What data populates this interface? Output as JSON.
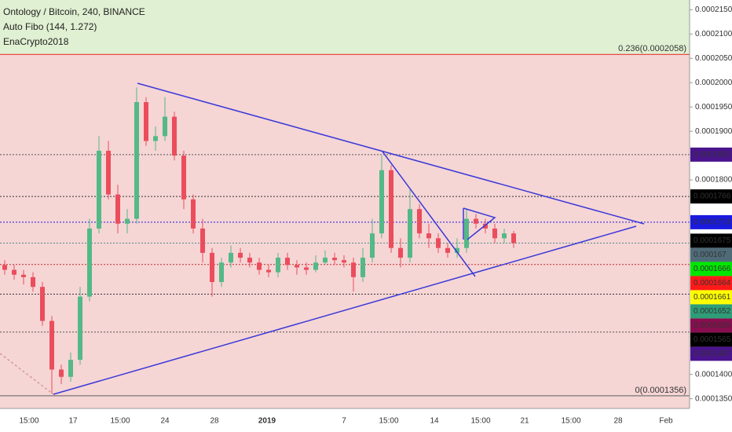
{
  "chart_data": {
    "type": "candlestick",
    "title": "Ontology / Bitcoin, 240, BINANCE",
    "indicator": "Auto Fibo (144, 1.272)",
    "author": "EnaCrypto2018",
    "x_labels": [
      "15:00",
      "17",
      "15:00",
      "24",
      "28",
      "2019",
      "7",
      "15:00",
      "14",
      "15:00",
      "21",
      "15:00",
      "28",
      "Feb"
    ],
    "open": [
      0.0001625,
      0.0001615,
      0.0001605,
      0.00016,
      0.000158,
      0.000151,
      0.000141,
      0.0001395,
      0.000143,
      0.000156,
      0.00017,
      0.000186,
      0.000177,
      0.000171,
      0.000172,
      0.000196,
      0.000188,
      0.000189,
      0.000193,
      0.000185,
      0.000176,
      0.00017,
      0.000165,
      0.000159,
      0.000163,
      0.000165,
      0.000164,
      0.000163,
      0.0001615,
      0.000161,
      0.000164,
      0.0001625,
      0.000162,
      0.0001615,
      0.000163,
      0.000164,
      0.0001635,
      0.000163,
      0.00016,
      0.000164,
      0.000169,
      0.000182,
      0.000166,
      0.000164,
      0.000174,
      0.000169,
      0.000168,
      0.000166,
      0.000165,
      0.000166,
      0.000172,
      0.000171,
      0.00017,
      0.000168,
      0.000169
    ],
    "high": [
      0.0001635,
      0.0001625,
      0.0001615,
      0.000161,
      0.000159,
      0.000152,
      0.000142,
      0.0001445,
      0.000158,
      0.000172,
      0.000189,
      0.000188,
      0.000179,
      0.000174,
      0.000199,
      0.000197,
      0.000191,
      0.000197,
      0.000194,
      0.000186,
      0.000177,
      0.000172,
      0.000166,
      0.000164,
      0.0001665,
      0.000166,
      0.000165,
      0.000164,
      0.0001625,
      0.000165,
      0.000165,
      0.0001635,
      0.000163,
      0.0001645,
      0.0001655,
      0.000165,
      0.0001645,
      0.000164,
      0.000166,
      0.000172,
      0.000185,
      0.000183,
      0.000168,
      0.000178,
      0.000175,
      0.000171,
      0.000169,
      0.000167,
      0.000168,
      0.000174,
      0.000173,
      0.000172,
      0.000171,
      0.00017,
      0.0001695
    ],
    "low": [
      0.0001605,
      0.0001595,
      0.0001585,
      0.000157,
      0.00015,
      0.000136,
      0.000138,
      0.0001385,
      0.000142,
      0.000155,
      0.000169,
      0.000176,
      0.000169,
      0.000169,
      0.000171,
      0.000187,
      0.000186,
      0.000188,
      0.000184,
      0.000174,
      0.000169,
      0.000163,
      0.000156,
      0.000158,
      0.000162,
      0.000163,
      0.000162,
      0.0001605,
      0.00016,
      0.00016,
      0.0001615,
      0.0001605,
      0.0001605,
      0.000161,
      0.0001625,
      0.0001625,
      0.000162,
      0.000157,
      0.000159,
      0.000163,
      0.000168,
      0.000165,
      0.000162,
      0.000163,
      0.000168,
      0.000166,
      0.000165,
      0.000164,
      0.000164,
      0.000165,
      0.00017,
      0.000169,
      0.000167,
      0.000167,
      0.000166
    ],
    "close": [
      0.0001615,
      0.0001605,
      0.00016,
      0.000158,
      0.000151,
      0.000141,
      0.0001395,
      0.000143,
      0.000156,
      0.00017,
      0.000186,
      0.000177,
      0.000171,
      0.000172,
      0.000196,
      0.000188,
      0.000189,
      0.000193,
      0.000185,
      0.000176,
      0.00017,
      0.000165,
      0.000159,
      0.000163,
      0.000165,
      0.000164,
      0.000163,
      0.0001615,
      0.000161,
      0.000164,
      0.0001625,
      0.000162,
      0.0001615,
      0.000163,
      0.000164,
      0.0001635,
      0.000163,
      0.00016,
      0.000164,
      0.000169,
      0.000182,
      0.000166,
      0.000164,
      0.000174,
      0.000169,
      0.000168,
      0.000166,
      0.000165,
      0.000166,
      0.000172,
      0.000171,
      0.00017,
      0.000168,
      0.000169,
      0.000167
    ],
    "up_color": "#53b987",
    "down_color": "#eb4d5c",
    "ylim": [
      0.000133,
      0.000217
    ],
    "yticks": [
      {
        "value": 0.000215,
        "label": "0.0002150"
      },
      {
        "value": 0.00021,
        "label": "0.0002100"
      },
      {
        "value": 0.000205,
        "label": "0.0002050"
      },
      {
        "value": 0.0002,
        "label": "0.0002000"
      },
      {
        "value": 0.000195,
        "label": "0.0001950"
      },
      {
        "value": 0.00019,
        "label": "0.0001900"
      },
      {
        "value": 0.00018,
        "label": "0.0001800"
      },
      {
        "value": 0.00014,
        "label": "0.0001400"
      },
      {
        "value": 0.000135,
        "label": "0.0001350"
      }
    ],
    "fib_levels": [
      {
        "label": "0.236(0.0002058)",
        "price": 0.0002058,
        "color": "#e53935"
      },
      {
        "label": "0(0.0001356)",
        "price": 0.0001356,
        "color": "#777777"
      }
    ],
    "price_labels": [
      {
        "value": 0.0001852,
        "color": "#4a148c",
        "line": "#555555"
      },
      {
        "value": 0.0001766,
        "color": "#000000",
        "line": "#333333"
      },
      {
        "value": 0.0001713,
        "color": "#1a1adf",
        "line": "#1a1adf"
      },
      {
        "value": 0.0001675,
        "color": "#000000"
      },
      {
        "value": 0.000167,
        "color": "#4f6b78",
        "line": "#4f8a8b"
      },
      {
        "value": 0.0001666,
        "color": "#00e600"
      },
      {
        "value": 0.0001664,
        "color": "#ff1a1a"
      },
      {
        "value": 0.0001661,
        "color": "#ffff00"
      },
      {
        "value": 0.0001652,
        "color": "#2e9e78"
      },
      {
        "value": 0.0001626,
        "color": "#880e4f",
        "line": "#c62828"
      },
      {
        "value": 0.0001565,
        "color": "#000000",
        "line": "#333333"
      },
      {
        "value": 0.0001487,
        "color": "#4a148c",
        "line": "#555555"
      }
    ]
  }
}
